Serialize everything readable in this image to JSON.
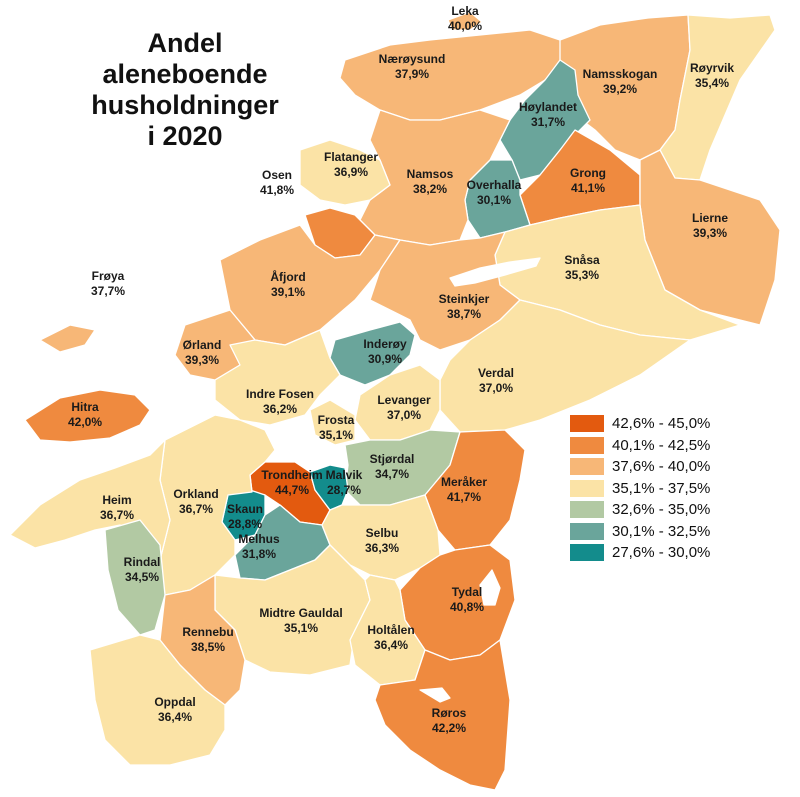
{
  "title_lines": [
    "Andel",
    "aleneboende",
    "husholdninger",
    "i 2020"
  ],
  "legend": [
    {
      "label": "42,6% - 45,0%",
      "color": "#e35a0f"
    },
    {
      "label": "40,1% - 42,5%",
      "color": "#ef8a3f"
    },
    {
      "label": "37,6% - 40,0%",
      "color": "#f7b777"
    },
    {
      "label": "35,1% - 37,5%",
      "color": "#fbe3a6"
    },
    {
      "label": "32,6% - 35,0%",
      "color": "#b2c9a3"
    },
    {
      "label": "30,1% - 32,5%",
      "color": "#6aa59b"
    },
    {
      "label": "27,6% - 30,0%",
      "color": "#138c8c"
    }
  ],
  "municipalities": [
    {
      "name": "Leka",
      "value": "40,0%"
    },
    {
      "name": "Nærøysund",
      "value": "37,9%"
    },
    {
      "name": "Namsskogan",
      "value": "39,2%"
    },
    {
      "name": "Røyrvik",
      "value": "35,4%"
    },
    {
      "name": "Høylandet",
      "value": "31,7%"
    },
    {
      "name": "Osen",
      "value": "41,8%"
    },
    {
      "name": "Flatanger",
      "value": "36,9%"
    },
    {
      "name": "Namsos",
      "value": "38,2%"
    },
    {
      "name": "Overhalla",
      "value": "30,1%"
    },
    {
      "name": "Grong",
      "value": "41,1%"
    },
    {
      "name": "Lierne",
      "value": "39,3%"
    },
    {
      "name": "Snåsa",
      "value": "35,3%"
    },
    {
      "name": "Frøya",
      "value": "37,7%"
    },
    {
      "name": "Åfjord",
      "value": "39,1%"
    },
    {
      "name": "Steinkjer",
      "value": "38,7%"
    },
    {
      "name": "Ørland",
      "value": "39,3%"
    },
    {
      "name": "Inderøy",
      "value": "30,9%"
    },
    {
      "name": "Verdal",
      "value": "37,0%"
    },
    {
      "name": "Indre Fosen",
      "value": "36,2%"
    },
    {
      "name": "Levanger",
      "value": "37,0%"
    },
    {
      "name": "Hitra",
      "value": "42,0%"
    },
    {
      "name": "Frosta",
      "value": "35,1%"
    },
    {
      "name": "Stjørdal",
      "value": "34,7%"
    },
    {
      "name": "Trondheim",
      "value": "44,7%"
    },
    {
      "name": "Malvik",
      "value": "28,7%"
    },
    {
      "name": "Meråker",
      "value": "41,7%"
    },
    {
      "name": "Heim",
      "value": "36,7%"
    },
    {
      "name": "Orkland",
      "value": "36,7%"
    },
    {
      "name": "Skaun",
      "value": "28,8%"
    },
    {
      "name": "Melhus",
      "value": "31,8%"
    },
    {
      "name": "Selbu",
      "value": "36,3%"
    },
    {
      "name": "Rindal",
      "value": "34,5%"
    },
    {
      "name": "Tydal",
      "value": "40,8%"
    },
    {
      "name": "Rennebu",
      "value": "38,5%"
    },
    {
      "name": "Midtre Gauldal",
      "value": "35,1%"
    },
    {
      "name": "Holtålen",
      "value": "36,4%"
    },
    {
      "name": "Oppdal",
      "value": "36,4%"
    },
    {
      "name": "Røros",
      "value": "42,2%"
    }
  ]
}
